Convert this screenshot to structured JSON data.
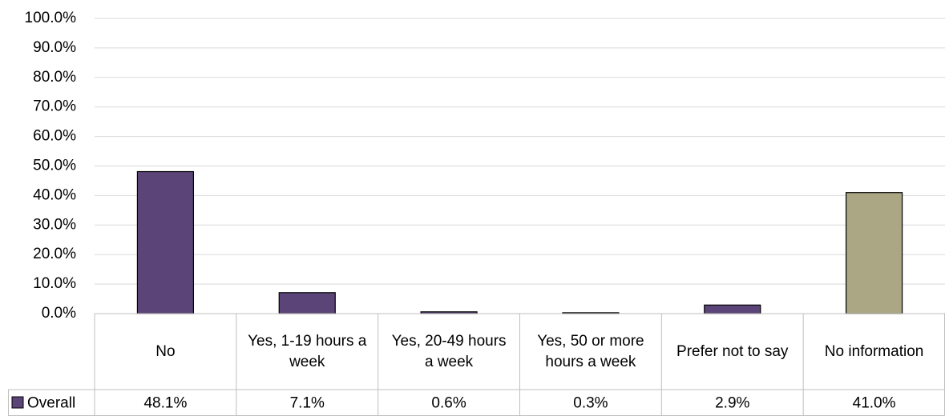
{
  "chart_data": {
    "type": "bar",
    "categories": [
      "No",
      "Yes, 1-19 hours a week",
      "Yes, 20-49 hours a week",
      "Yes, 50 or more hours a week",
      "Prefer not to say",
      "No information"
    ],
    "series": [
      {
        "name": "Overall",
        "color": "#5b4478",
        "colors": [
          "#5b4478",
          "#5b4478",
          "#5b4478",
          "#5b4478",
          "#5b4478",
          "#aba684"
        ],
        "values": [
          48.1,
          7.1,
          0.6,
          0.3,
          2.9,
          41.0
        ],
        "value_labels": [
          "48.1%",
          "7.1%",
          "0.6%",
          "0.3%",
          "2.9%",
          "41.0%"
        ]
      }
    ],
    "ylim": [
      0,
      100
    ],
    "yticks": [
      {
        "value": 0,
        "label": "0.0%"
      },
      {
        "value": 10,
        "label": "10.0%"
      },
      {
        "value": 20,
        "label": "20.0%"
      },
      {
        "value": 30,
        "label": "30.0%"
      },
      {
        "value": 40,
        "label": "40.0%"
      },
      {
        "value": 50,
        "label": "50.0%"
      },
      {
        "value": 60,
        "label": "60.0%"
      },
      {
        "value": 70,
        "label": "70.0%"
      },
      {
        "value": 80,
        "label": "80.0%"
      },
      {
        "value": 90,
        "label": "90.0%"
      },
      {
        "value": 100,
        "label": "100.0%"
      }
    ],
    "grid": true,
    "data_table": true
  }
}
